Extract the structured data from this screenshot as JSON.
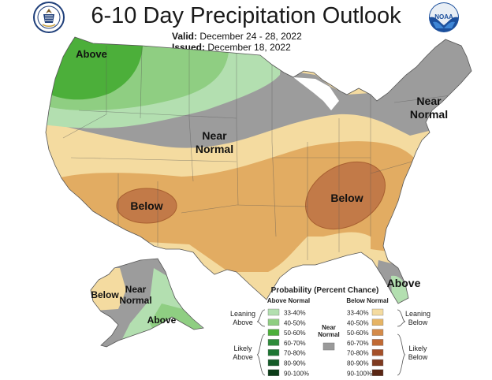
{
  "header": {
    "title": "6-10 Day Precipitation Outlook",
    "valid_label": "Valid:",
    "valid_value": "December 24 - 28, 2022",
    "issued_label": "Issued:",
    "issued_value": "December 18, 2022"
  },
  "logos": {
    "left": "department-of-commerce-seal",
    "right": "noaa-logo",
    "noaa_text": "NOAA"
  },
  "map_labels": {
    "above_nw": "Above",
    "near_normal_central": [
      "Near",
      "Normal"
    ],
    "near_normal_ne": [
      "Near",
      "Normal"
    ],
    "below_sw": "Below",
    "below_se": "Below",
    "above_fl": "Above",
    "ak_below": "Below",
    "ak_near_normal": [
      "Near",
      "Normal"
    ],
    "ak_above": "Above"
  },
  "legend": {
    "title": "Probability (Percent Chance)",
    "above_header": "Above Normal",
    "below_header": "Below Normal",
    "near_normal": [
      "Near",
      "Normal"
    ],
    "leaning_above": [
      "Leaning",
      "Above"
    ],
    "likely_above": [
      "Likely",
      "Above"
    ],
    "leaning_below": [
      "Leaning",
      "Below"
    ],
    "likely_below": [
      "Likely",
      "Below"
    ],
    "ranges": [
      "33-40%",
      "40-50%",
      "50-60%",
      "60-70%",
      "70-80%",
      "80-90%",
      "90-100%"
    ],
    "above_colors": [
      "#b3dfb0",
      "#8fce82",
      "#4caf3a",
      "#2e8b3a",
      "#1d7532",
      "#145b28",
      "#0b3d18"
    ],
    "below_colors": [
      "#f4dba0",
      "#e6b465",
      "#d48b4a",
      "#c06a35",
      "#a4502a",
      "#7e3a20",
      "#5a2614"
    ],
    "near_color": "#9a9a9a"
  }
}
